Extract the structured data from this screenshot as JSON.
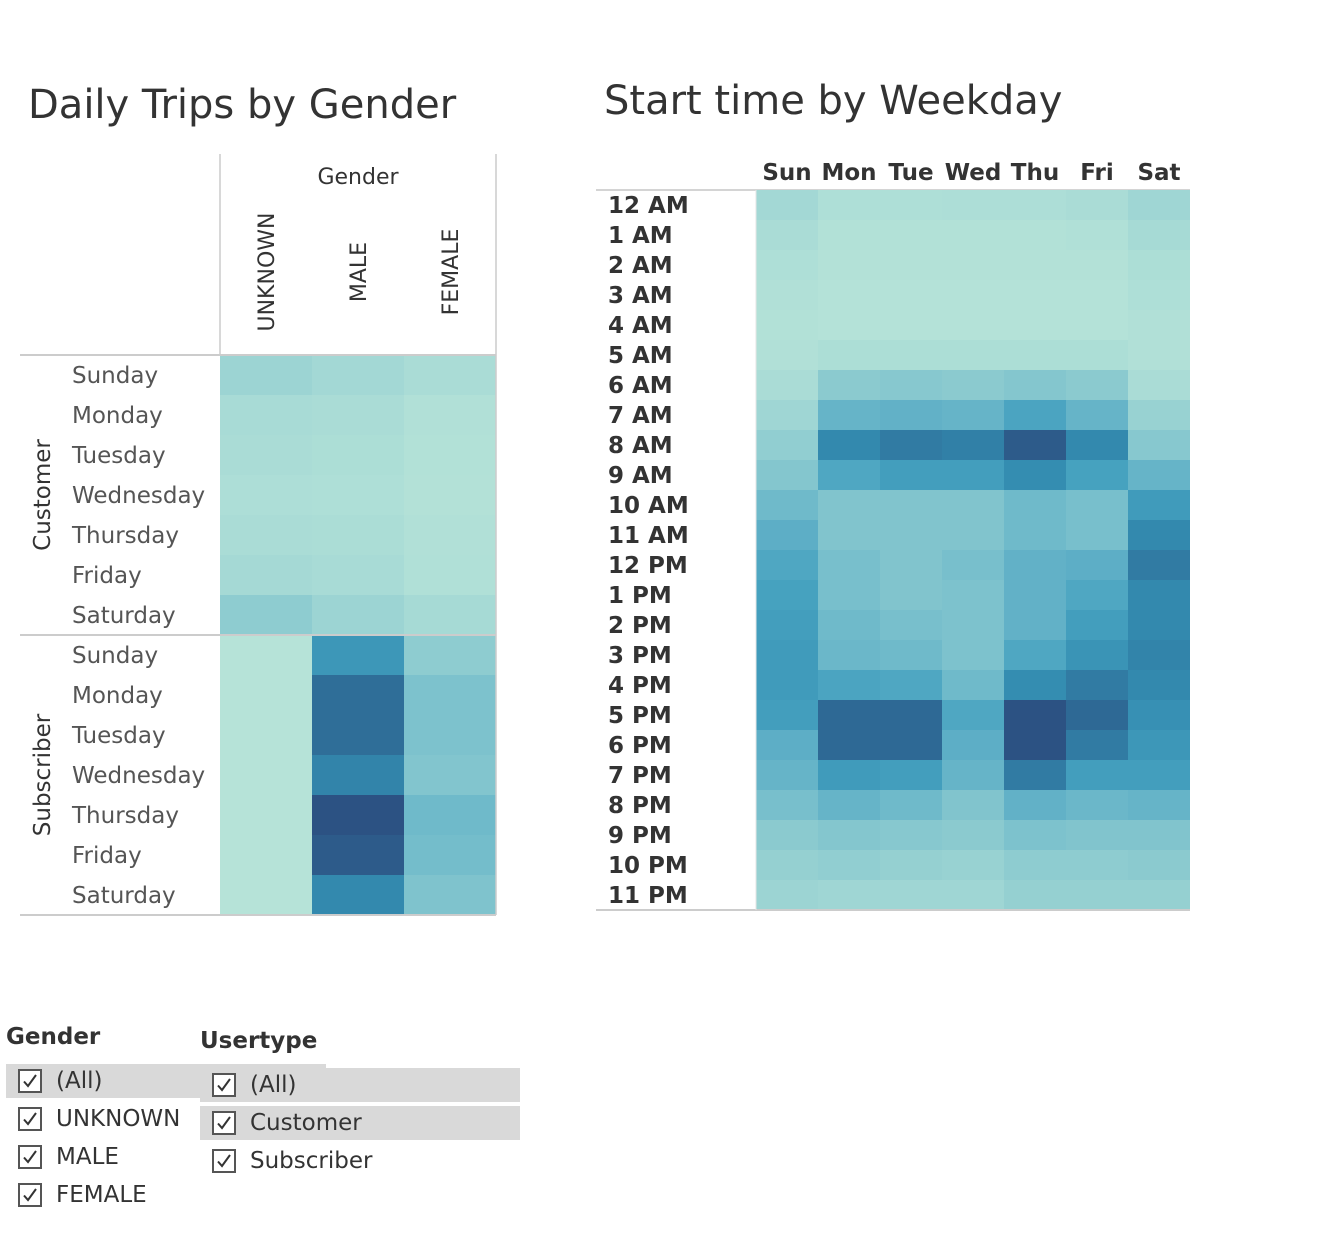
{
  "titles": {
    "gender_chart": "Daily Trips by Gender",
    "weekday_chart": "Start time by Weekday"
  },
  "filters": {
    "gender": {
      "title": "Gender",
      "items": [
        {
          "label": "(All)",
          "checked": true,
          "highlighted": true
        },
        {
          "label": "UNKNOWN",
          "checked": true,
          "highlighted": false
        },
        {
          "label": "MALE",
          "checked": true,
          "highlighted": false
        },
        {
          "label": "FEMALE",
          "checked": true,
          "highlighted": false
        }
      ]
    },
    "usertype": {
      "title": "Usertype",
      "items": [
        {
          "label": "(All)",
          "checked": true,
          "highlighted": true
        },
        {
          "label": "Customer",
          "checked": true,
          "highlighted": true
        },
        {
          "label": "Subscriber",
          "checked": true,
          "highlighted": false
        }
      ]
    }
  },
  "colors": {
    "scale": [
      "#b8e4d8",
      "#a9dcd6",
      "#93cfd1",
      "#7ec3cd",
      "#62b1c7",
      "#45a1bf",
      "#338bb0",
      "#2f6f99",
      "#2c5283"
    ],
    "divider": "#cccccc",
    "header_rule": "#d4d4d4"
  },
  "chart_data": [
    {
      "type": "heatmap",
      "title": "Daily Trips by Gender",
      "column_header": "Gender",
      "columns": [
        "UNKNOWN",
        "MALE",
        "FEMALE"
      ],
      "row_groups": [
        "Customer",
        "Subscriber"
      ],
      "rows": [
        "Sunday",
        "Monday",
        "Tuesday",
        "Wednesday",
        "Thursday",
        "Friday",
        "Saturday"
      ],
      "value_scale": "relative intensity 0-1",
      "values": {
        "Customer": [
          [
            0.2,
            0.16,
            0.12
          ],
          [
            0.13,
            0.12,
            0.06
          ],
          [
            0.12,
            0.1,
            0.05
          ],
          [
            0.09,
            0.08,
            0.04
          ],
          [
            0.12,
            0.11,
            0.06
          ],
          [
            0.15,
            0.13,
            0.07
          ],
          [
            0.28,
            0.2,
            0.14
          ]
        ],
        "Subscriber": [
          [
            0.02,
            0.68,
            0.28
          ],
          [
            0.02,
            0.88,
            0.38
          ],
          [
            0.02,
            0.88,
            0.38
          ],
          [
            0.02,
            0.78,
            0.35
          ],
          [
            0.02,
            1.0,
            0.44
          ],
          [
            0.02,
            0.96,
            0.42
          ],
          [
            0.02,
            0.76,
            0.37
          ]
        ]
      }
    },
    {
      "type": "heatmap",
      "title": "Start time by Weekday",
      "columns": [
        "Sun",
        "Mon",
        "Tue",
        "Wed",
        "Thu",
        "Fri",
        "Sat"
      ],
      "rows": [
        "12 AM",
        "1 AM",
        "2 AM",
        "3 AM",
        "4 AM",
        "5 AM",
        "6 AM",
        "7 AM",
        "8 AM",
        "9 AM",
        "10 AM",
        "11 AM",
        "12 PM",
        "1 PM",
        "2 PM",
        "3 PM",
        "4 PM",
        "5 PM",
        "6 PM",
        "7 PM",
        "8 PM",
        "9 PM",
        "10 PM",
        "11 PM"
      ],
      "value_scale": "relative intensity 0-1",
      "values": [
        [
          0.16,
          0.08,
          0.08,
          0.09,
          0.09,
          0.12,
          0.18
        ],
        [
          0.12,
          0.05,
          0.05,
          0.05,
          0.05,
          0.07,
          0.14
        ],
        [
          0.08,
          0.04,
          0.04,
          0.04,
          0.04,
          0.04,
          0.1
        ],
        [
          0.06,
          0.03,
          0.03,
          0.03,
          0.03,
          0.03,
          0.08
        ],
        [
          0.05,
          0.03,
          0.03,
          0.03,
          0.03,
          0.03,
          0.06
        ],
        [
          0.06,
          0.1,
          0.1,
          0.1,
          0.1,
          0.1,
          0.06
        ],
        [
          0.12,
          0.3,
          0.32,
          0.3,
          0.34,
          0.3,
          0.12
        ],
        [
          0.18,
          0.48,
          0.5,
          0.48,
          0.6,
          0.48,
          0.22
        ],
        [
          0.26,
          0.76,
          0.82,
          0.8,
          0.96,
          0.76,
          0.32
        ],
        [
          0.34,
          0.58,
          0.64,
          0.64,
          0.74,
          0.62,
          0.48
        ],
        [
          0.44,
          0.36,
          0.36,
          0.36,
          0.44,
          0.4,
          0.66
        ],
        [
          0.52,
          0.36,
          0.36,
          0.36,
          0.44,
          0.4,
          0.76
        ],
        [
          0.58,
          0.4,
          0.36,
          0.4,
          0.5,
          0.52,
          0.82
        ],
        [
          0.62,
          0.4,
          0.36,
          0.38,
          0.5,
          0.58,
          0.76
        ],
        [
          0.64,
          0.44,
          0.4,
          0.38,
          0.5,
          0.64,
          0.76
        ],
        [
          0.66,
          0.46,
          0.44,
          0.38,
          0.58,
          0.7,
          0.78
        ],
        [
          0.66,
          0.6,
          0.58,
          0.44,
          0.74,
          0.82,
          0.76
        ],
        [
          0.64,
          0.9,
          0.9,
          0.58,
          1.0,
          0.9,
          0.72
        ],
        [
          0.52,
          0.9,
          0.9,
          0.52,
          1.0,
          0.82,
          0.68
        ],
        [
          0.48,
          0.66,
          0.64,
          0.48,
          0.82,
          0.64,
          0.64
        ],
        [
          0.4,
          0.48,
          0.44,
          0.36,
          0.5,
          0.46,
          0.48
        ],
        [
          0.3,
          0.34,
          0.32,
          0.3,
          0.38,
          0.36,
          0.36
        ],
        [
          0.24,
          0.26,
          0.24,
          0.22,
          0.28,
          0.28,
          0.3
        ],
        [
          0.2,
          0.18,
          0.18,
          0.18,
          0.24,
          0.24,
          0.24
        ]
      ]
    }
  ]
}
